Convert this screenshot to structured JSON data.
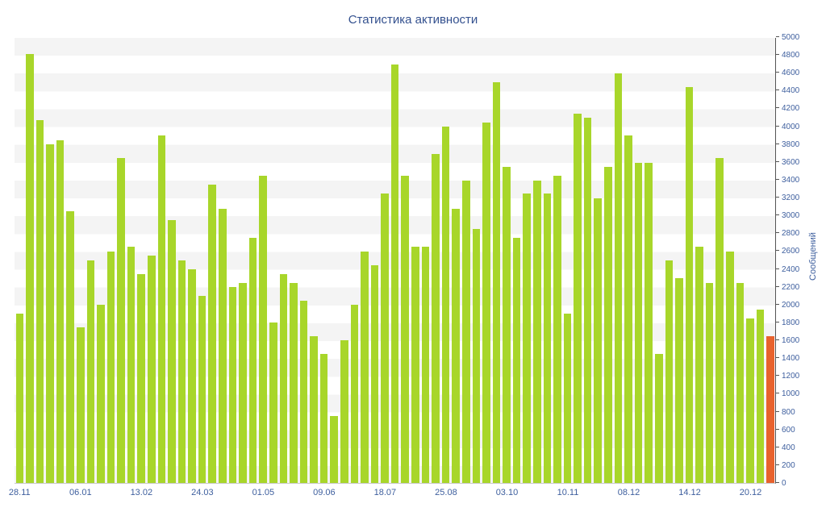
{
  "chart_data": {
    "type": "bar",
    "title": "Статистика активности",
    "ylabel": "Сообщений",
    "xlabel": "",
    "y_min": 0,
    "y_max": 5000,
    "y_step": 200,
    "x_tick_labels": [
      "28.11",
      "06.01",
      "13.02",
      "24.03",
      "01.05",
      "09.06",
      "18.07",
      "25.08",
      "03.10",
      "10.11",
      "08.12",
      "14.12",
      "20.12"
    ],
    "x_label_stride": 6,
    "values": [
      1900,
      4820,
      4080,
      3800,
      3850,
      3050,
      1750,
      2500,
      2000,
      2600,
      3650,
      2650,
      2350,
      2550,
      3900,
      2950,
      2500,
      2400,
      2100,
      3350,
      3080,
      2200,
      2250,
      2750,
      3450,
      1800,
      2350,
      2250,
      2050,
      1650,
      1450,
      750,
      1600,
      2000,
      2600,
      2450,
      3250,
      4700,
      3450,
      2650,
      2650,
      3700,
      4000,
      3080,
      3400,
      2850,
      4050,
      4500,
      3550,
      2750,
      3250,
      3400,
      3250,
      3450,
      1900,
      4150,
      4100,
      3200,
      3550,
      4600,
      3900,
      3600,
      3600,
      1450,
      2500,
      2300,
      4450,
      2650,
      2250,
      3650,
      2600,
      2250,
      1850,
      1950,
      1650
    ],
    "bar_color": "#a8d62a",
    "highlight_index": 74,
    "highlight_color": "#e8622d",
    "grid": "striped-bands",
    "legend": "none"
  },
  "colors": {
    "background": "#ffffff",
    "title_text": "#34518f",
    "axis_text": "#3e5f9e",
    "axis_line": "#555555",
    "baseline": "#c9c9c9",
    "stripe": "#f4f4f4"
  }
}
